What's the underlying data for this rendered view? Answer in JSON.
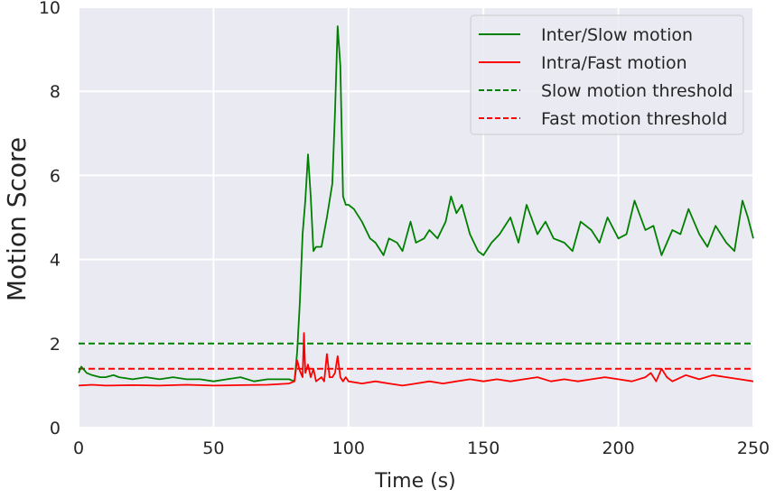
{
  "chart_data": {
    "type": "line",
    "xlabel": "Time (s)",
    "ylabel": "Motion Score",
    "xlim": [
      0,
      250
    ],
    "ylim": [
      0,
      10
    ],
    "x_ticks": [
      "0",
      "50",
      "100",
      "150",
      "200",
      "250"
    ],
    "y_ticks": [
      "0",
      "2",
      "4",
      "6",
      "8",
      "10"
    ],
    "grid": true,
    "legend_position": "top-right",
    "series": [
      {
        "name": "Inter/Slow motion",
        "color": "#008000",
        "style": "solid",
        "x": [
          0,
          1,
          3,
          5,
          8,
          10,
          13,
          15,
          20,
          25,
          30,
          35,
          40,
          45,
          50,
          55,
          60,
          65,
          70,
          75,
          78,
          80,
          81,
          82,
          83,
          84,
          85,
          86,
          87,
          88,
          90,
          92,
          94,
          95,
          96,
          97,
          98,
          99,
          100,
          102,
          105,
          108,
          110,
          113,
          115,
          118,
          120,
          123,
          125,
          128,
          130,
          133,
          136,
          138,
          140,
          142,
          145,
          148,
          150,
          153,
          156,
          160,
          163,
          166,
          170,
          173,
          176,
          180,
          183,
          186,
          190,
          193,
          196,
          200,
          203,
          206,
          210,
          213,
          216,
          220,
          223,
          226,
          230,
          233,
          236,
          240,
          243,
          246,
          248,
          250
        ],
        "y": [
          1.3,
          1.45,
          1.3,
          1.25,
          1.2,
          1.2,
          1.25,
          1.2,
          1.15,
          1.2,
          1.15,
          1.2,
          1.15,
          1.15,
          1.1,
          1.15,
          1.2,
          1.1,
          1.15,
          1.15,
          1.15,
          1.1,
          1.8,
          3.0,
          4.6,
          5.4,
          6.5,
          5.5,
          4.2,
          4.3,
          4.3,
          5.0,
          5.8,
          7.5,
          9.55,
          8.6,
          5.5,
          5.3,
          5.3,
          5.2,
          4.9,
          4.5,
          4.4,
          4.1,
          4.5,
          4.4,
          4.2,
          4.9,
          4.4,
          4.5,
          4.7,
          4.5,
          4.9,
          5.5,
          5.1,
          5.3,
          4.6,
          4.2,
          4.1,
          4.4,
          4.6,
          5.0,
          4.4,
          5.3,
          4.6,
          4.9,
          4.5,
          4.4,
          4.2,
          4.9,
          4.7,
          4.4,
          5.0,
          4.5,
          4.6,
          5.4,
          4.7,
          4.8,
          4.1,
          4.7,
          4.6,
          5.2,
          4.6,
          4.3,
          4.8,
          4.4,
          4.2,
          5.4,
          5.0,
          4.5
        ]
      },
      {
        "name": "Intra/Fast motion",
        "color": "#ff0000",
        "style": "solid",
        "x": [
          0,
          5,
          10,
          20,
          30,
          40,
          50,
          60,
          70,
          78,
          80,
          81,
          82,
          83,
          83.5,
          84,
          85,
          86,
          87,
          88,
          90,
          91,
          92,
          93,
          94,
          95,
          96,
          97,
          98,
          99,
          100,
          105,
          110,
          115,
          120,
          125,
          130,
          135,
          140,
          145,
          150,
          155,
          160,
          165,
          170,
          175,
          180,
          185,
          190,
          195,
          200,
          205,
          210,
          212,
          214,
          216,
          218,
          220,
          225,
          230,
          235,
          240,
          245,
          250
        ],
        "y": [
          1.0,
          1.02,
          1.0,
          1.01,
          1.0,
          1.02,
          1.0,
          1.01,
          1.02,
          1.05,
          1.1,
          1.6,
          1.35,
          1.2,
          2.25,
          1.3,
          1.5,
          1.2,
          1.4,
          1.1,
          1.2,
          1.1,
          1.75,
          1.2,
          1.2,
          1.3,
          1.7,
          1.2,
          1.1,
          1.2,
          1.1,
          1.05,
          1.1,
          1.05,
          1.0,
          1.05,
          1.1,
          1.05,
          1.1,
          1.15,
          1.1,
          1.15,
          1.1,
          1.15,
          1.2,
          1.1,
          1.15,
          1.1,
          1.15,
          1.2,
          1.15,
          1.1,
          1.2,
          1.3,
          1.1,
          1.4,
          1.2,
          1.1,
          1.25,
          1.15,
          1.25,
          1.2,
          1.15,
          1.1
        ]
      },
      {
        "name": "Slow motion threshold",
        "color": "#008000",
        "style": "dashed",
        "x": [
          0,
          250
        ],
        "y": [
          2.0,
          2.0
        ]
      },
      {
        "name": "Fast motion threshold",
        "color": "#ff0000",
        "style": "dashed",
        "x": [
          0,
          250
        ],
        "y": [
          1.4,
          1.4
        ]
      }
    ]
  }
}
